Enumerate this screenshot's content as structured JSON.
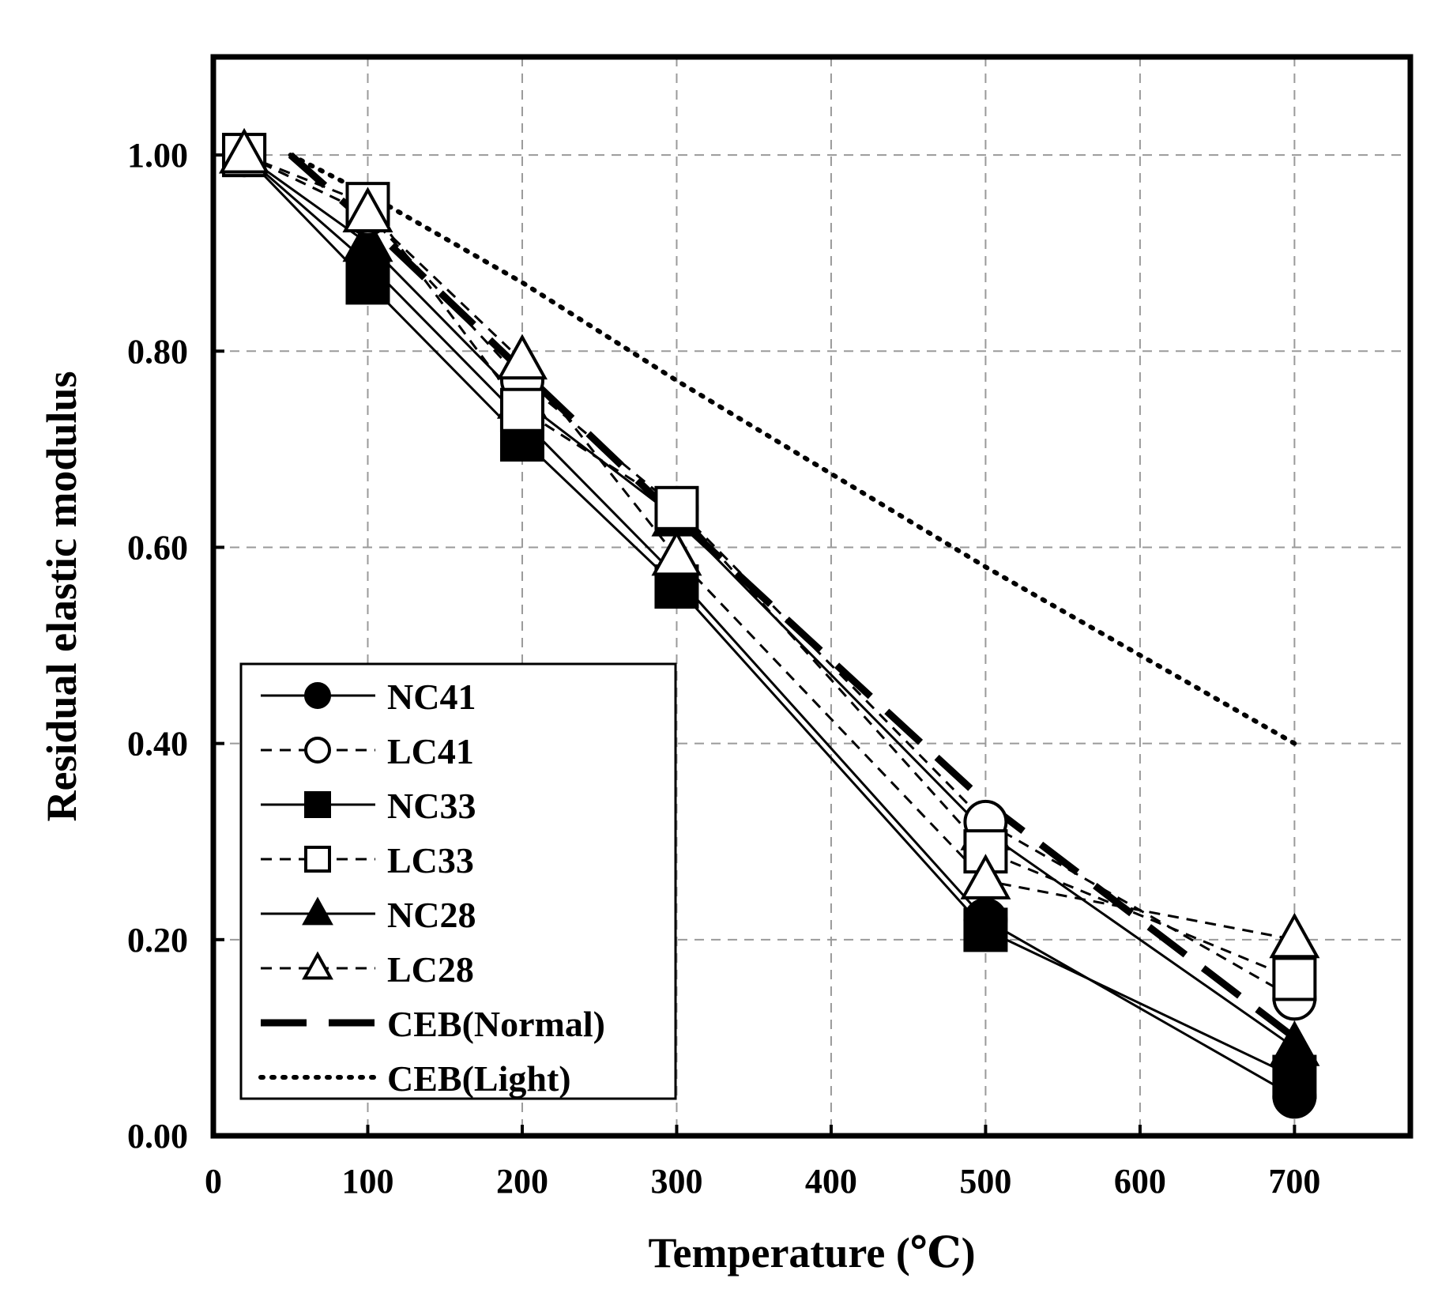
{
  "chart_data": {
    "type": "line",
    "title": "",
    "xlabel": "Temperature (℃)",
    "ylabel": "Residual elastic modulus",
    "xlim": [
      0,
      775
    ],
    "ylim": [
      0,
      1.1
    ],
    "x_ticks": [
      0,
      100,
      200,
      300,
      400,
      500,
      600,
      700
    ],
    "x_tick_labels": [
      "0",
      "100",
      "200",
      "300",
      "400",
      "500",
      "600",
      "700"
    ],
    "y_ticks": [
      0,
      0.2,
      0.4,
      0.6,
      0.8,
      1.0
    ],
    "y_tick_labels": [
      "0.00",
      "0.20",
      "0.40",
      "0.60",
      "0.80",
      "1.00"
    ],
    "grid": true,
    "legend_position": "bottom-left",
    "series": [
      {
        "name": "NC41",
        "line": "solid",
        "marker": "circle",
        "filled": true,
        "x": [
          20,
          100,
          200,
          300,
          500,
          700
        ],
        "y": [
          1.0,
          0.89,
          0.73,
          0.57,
          0.22,
          0.04
        ]
      },
      {
        "name": "LC41",
        "line": "dashed",
        "marker": "circle",
        "filled": false,
        "x": [
          20,
          100,
          200,
          300,
          500,
          700
        ],
        "y": [
          1.0,
          0.94,
          0.77,
          0.64,
          0.32,
          0.14
        ]
      },
      {
        "name": "NC33",
        "line": "solid",
        "marker": "square",
        "filled": true,
        "x": [
          20,
          100,
          200,
          300,
          500,
          700
        ],
        "y": [
          1.0,
          0.87,
          0.71,
          0.56,
          0.21,
          0.06
        ]
      },
      {
        "name": "LC33",
        "line": "dashed",
        "marker": "square",
        "filled": false,
        "x": [
          20,
          100,
          200,
          300,
          500,
          700
        ],
        "y": [
          1.0,
          0.95,
          0.74,
          0.64,
          0.29,
          0.16
        ]
      },
      {
        "name": "NC28",
        "line": "solid",
        "marker": "triangle",
        "filled": true,
        "x": [
          20,
          100,
          200,
          300,
          500,
          700
        ],
        "y": [
          1.0,
          0.91,
          0.75,
          0.63,
          0.31,
          0.09
        ]
      },
      {
        "name": "LC28",
        "line": "dashed",
        "marker": "triangle",
        "filled": false,
        "x": [
          20,
          100,
          200,
          300,
          500,
          700
        ],
        "y": [
          1.0,
          0.94,
          0.79,
          0.59,
          0.26,
          0.2
        ]
      },
      {
        "name": "CEB(Normal)",
        "line": "longdash",
        "marker": "none",
        "filled": false,
        "x": [
          50,
          100,
          200,
          300,
          500,
          700
        ],
        "y": [
          1.0,
          0.93,
          0.78,
          0.63,
          0.34,
          0.1
        ]
      },
      {
        "name": "CEB(Light)",
        "line": "dotted",
        "marker": "none",
        "filled": false,
        "x": [
          50,
          100,
          200,
          300,
          500,
          700
        ],
        "y": [
          1.0,
          0.96,
          0.87,
          0.77,
          0.58,
          0.4
        ]
      }
    ]
  }
}
